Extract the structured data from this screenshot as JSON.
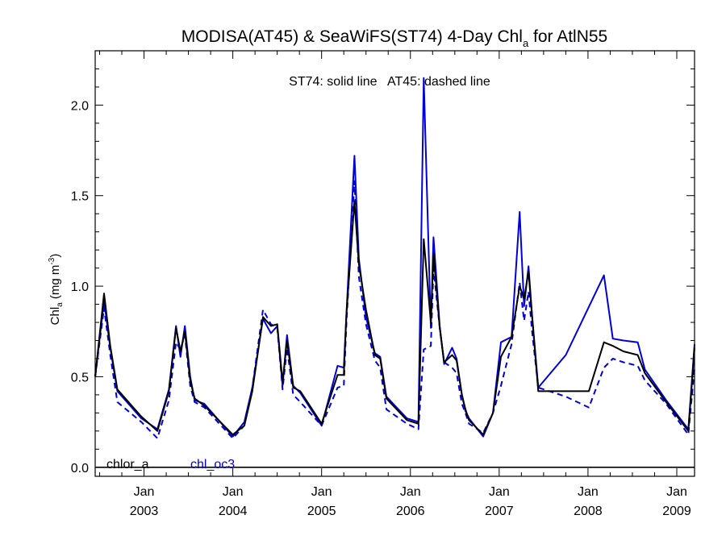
{
  "chart_data": {
    "type": "line",
    "title": {
      "main": "MODISA(AT45) & SeaWiFS(ST74) 4-Day Chl",
      "sub": "a",
      "tail": " for AtlN55"
    },
    "annotation": "ST74: solid line   AT45: dashed line",
    "ylabel": {
      "main": "Chl",
      "sub": "a",
      "units": " (mg m",
      "sup": "-3",
      "close": ")"
    },
    "ylim": [
      -0.05,
      2.3
    ],
    "yticks": [
      0.0,
      0.5,
      1.0,
      1.5,
      2.0
    ],
    "ytick_labels": [
      "0.0",
      "0.5",
      "1.0",
      "1.5",
      "2.0"
    ],
    "xlim": [
      2002.45,
      2009.2
    ],
    "xticks": [
      {
        "x": 2003.0,
        "month": "Jan",
        "year": "2003"
      },
      {
        "x": 2004.0,
        "month": "Jan",
        "year": "2004"
      },
      {
        "x": 2005.0,
        "month": "Jan",
        "year": "2005"
      },
      {
        "x": 2006.0,
        "month": "Jan",
        "year": "2006"
      },
      {
        "x": 2007.0,
        "month": "Jan",
        "year": "2007"
      },
      {
        "x": 2008.0,
        "month": "Jan",
        "year": "2008"
      },
      {
        "x": 2009.0,
        "month": "Jan",
        "year": "2009"
      }
    ],
    "grid": false,
    "legend": [
      {
        "label": "chlor_a",
        "color": "#000000"
      },
      {
        "label": "chl_oc3",
        "color": "#0000dd"
      }
    ],
    "series": [
      {
        "name": "chlor_a",
        "sensor": "ST74",
        "color": "#000000",
        "dash": false,
        "x": [
          2002.45,
          2002.55,
          2002.62,
          2002.7,
          2002.97,
          2003.15,
          2003.28,
          2003.36,
          2003.41,
          2003.46,
          2003.52,
          2003.57,
          2003.68,
          2004.0,
          2004.13,
          2004.22,
          2004.34,
          2004.43,
          2004.5,
          2004.56,
          2004.61,
          2004.68,
          2004.76,
          2005.0,
          2005.18,
          2005.25,
          2005.28,
          2005.37,
          2005.42,
          2005.5,
          2005.6,
          2005.66,
          2005.73,
          2005.96,
          2006.09,
          2006.15,
          2006.23,
          2006.26,
          2006.33,
          2006.38,
          2006.47,
          2006.52,
          2006.58,
          2006.62,
          2006.66,
          2006.82,
          2006.93,
          2007.02,
          2007.14,
          2007.23,
          2007.28,
          2007.33,
          2007.37,
          2007.44,
          2007.5,
          2007.54,
          2007.6,
          2007.65,
          2007.71,
          2007.75,
          2008.01,
          2008.18,
          2008.28,
          2008.4,
          2008.56,
          2008.64,
          2008.88,
          2009.13,
          2009.2
        ],
        "y": [
          0.5,
          0.96,
          0.67,
          0.43,
          0.28,
          0.2,
          0.42,
          0.77,
          0.64,
          0.75,
          0.48,
          0.38,
          0.34,
          0.18,
          0.23,
          0.42,
          0.83,
          0.78,
          0.79,
          0.47,
          0.7,
          0.44,
          0.42,
          0.24,
          0.51,
          0.51,
          0.85,
          1.47,
          1.12,
          0.87,
          0.62,
          0.6,
          0.38,
          0.26,
          0.24,
          1.26,
          0.8,
          1.18,
          0.77,
          0.58,
          0.62,
          0.59,
          0.4,
          0.32,
          0.26,
          0.18,
          0.3,
          0.61,
          0.72,
          1.0,
          0.93,
          1.08,
          0.83,
          0.42,
          0.42,
          0.42,
          0.42,
          0.42,
          0.42,
          0.42,
          0.42,
          0.69,
          0.67,
          0.64,
          0.62,
          0.52,
          0.36,
          0.2,
          0.66
        ]
      },
      {
        "name": "chl_oc3",
        "sensor": "ST74",
        "color": "#0000dd",
        "dash": false,
        "x": [
          2002.45,
          2002.55,
          2002.62,
          2002.7,
          2002.97,
          2003.15,
          2003.28,
          2003.36,
          2003.41,
          2003.46,
          2003.52,
          2003.57,
          2003.68,
          2004.0,
          2004.13,
          2004.22,
          2004.34,
          2004.43,
          2004.5,
          2004.56,
          2004.61,
          2004.68,
          2004.76,
          2005.0,
          2005.18,
          2005.25,
          2005.28,
          2005.37,
          2005.42,
          2005.5,
          2005.6,
          2005.66,
          2005.73,
          2005.96,
          2006.09,
          2006.15,
          2006.23,
          2006.26,
          2006.33,
          2006.38,
          2006.47,
          2006.52,
          2006.58,
          2006.62,
          2006.66,
          2006.82,
          2006.93,
          2007.02,
          2007.14,
          2007.23,
          2007.28,
          2007.33,
          2007.37,
          2007.44,
          2007.75,
          2008.18,
          2008.28,
          2008.4,
          2008.56,
          2008.64,
          2008.88,
          2009.13,
          2009.2
        ],
        "y": [
          0.5,
          0.92,
          0.66,
          0.42,
          0.27,
          0.21,
          0.43,
          0.78,
          0.61,
          0.78,
          0.5,
          0.37,
          0.35,
          0.17,
          0.25,
          0.44,
          0.82,
          0.74,
          0.78,
          0.45,
          0.73,
          0.45,
          0.41,
          0.23,
          0.56,
          0.55,
          0.85,
          1.72,
          1.15,
          0.83,
          0.63,
          0.61,
          0.39,
          0.27,
          0.25,
          2.15,
          0.77,
          1.27,
          0.78,
          0.57,
          0.66,
          0.6,
          0.4,
          0.31,
          0.27,
          0.17,
          0.3,
          0.69,
          0.72,
          1.41,
          0.89,
          1.11,
          0.84,
          0.44,
          0.62,
          1.06,
          0.71,
          0.7,
          0.69,
          0.54,
          0.37,
          0.21,
          0.68
        ]
      },
      {
        "name": "chl_oc3",
        "sensor": "AT45",
        "color": "#0000dd",
        "dash": true,
        "x": [
          2002.45,
          2002.55,
          2002.62,
          2002.7,
          2002.97,
          2003.15,
          2003.28,
          2003.36,
          2003.41,
          2003.46,
          2003.52,
          2003.57,
          2003.68,
          2004.0,
          2004.13,
          2004.22,
          2004.34,
          2004.43,
          2004.5,
          2004.56,
          2004.61,
          2004.68,
          2004.76,
          2005.0,
          2005.18,
          2005.25,
          2005.28,
          2005.37,
          2005.42,
          2005.5,
          2005.6,
          2005.66,
          2005.73,
          2005.96,
          2006.09,
          2006.15,
          2006.23,
          2006.26,
          2006.33,
          2006.38,
          2006.47,
          2006.52,
          2006.58,
          2006.62,
          2006.66,
          2006.82,
          2006.93,
          2007.02,
          2007.14,
          2007.23,
          2007.28,
          2007.33,
          2007.37,
          2007.44,
          2007.75,
          2008.01,
          2008.18,
          2008.28,
          2008.4,
          2008.56,
          2008.64,
          2008.88,
          2009.13,
          2009.2
        ],
        "y": [
          0.5,
          0.88,
          0.62,
          0.36,
          0.25,
          0.16,
          0.37,
          0.69,
          0.65,
          0.73,
          0.45,
          0.36,
          0.33,
          0.16,
          0.23,
          0.44,
          0.87,
          0.79,
          0.77,
          0.43,
          0.66,
          0.4,
          0.36,
          0.23,
          0.44,
          0.45,
          0.8,
          1.58,
          1.05,
          0.79,
          0.59,
          0.55,
          0.32,
          0.24,
          0.21,
          0.65,
          0.67,
          1.1,
          0.77,
          0.58,
          0.55,
          0.52,
          0.35,
          0.3,
          0.24,
          0.19,
          0.3,
          0.45,
          0.68,
          1.02,
          0.81,
          0.97,
          0.75,
          0.44,
          0.39,
          0.33,
          0.55,
          0.6,
          0.58,
          0.56,
          0.48,
          0.35,
          0.18,
          0.55
        ]
      }
    ]
  }
}
